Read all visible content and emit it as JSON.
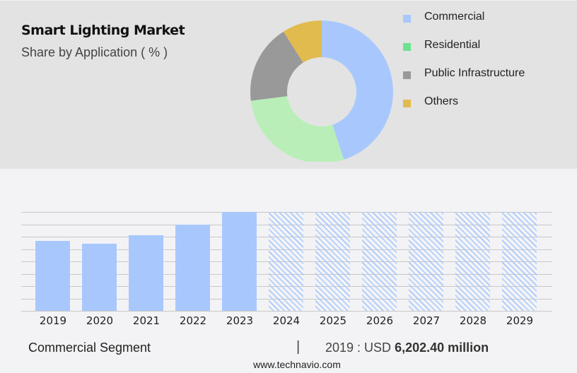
{
  "header": {
    "title": "Smart Lighting Market",
    "subtitle": "Share by Application ( % )"
  },
  "legend": {
    "items": [
      {
        "label": "Commercial",
        "color": "#a8c8fd"
      },
      {
        "label": "Residential",
        "color": "#6de28e"
      },
      {
        "label": "Public Infrastructure",
        "color": "#999999"
      },
      {
        "label": "Others",
        "color": "#e2bb4e"
      }
    ]
  },
  "footer": {
    "segment": "Commercial Segment",
    "separator": "|",
    "year_prefix": "2019 : USD ",
    "value": "6,202.40 million",
    "url": "www.technavio.com"
  },
  "chart_data": [
    {
      "type": "pie",
      "title": "Smart Lighting Market",
      "subtitle": "Share by Application ( % )",
      "donut": true,
      "categories": [
        "Commercial",
        "Residential",
        "Public Infrastructure",
        "Others"
      ],
      "values": [
        45,
        28,
        18,
        9
      ],
      "colors": [
        "#a8c8fd",
        "#b9eeb9",
        "#999999",
        "#e2bb4e"
      ],
      "legend_position": "right"
    },
    {
      "type": "bar",
      "title": "Commercial Segment",
      "categories": [
        "2019",
        "2020",
        "2021",
        "2022",
        "2023",
        "2024",
        "2025",
        "2026",
        "2027",
        "2028",
        "2029"
      ],
      "values": [
        6202.4,
        5950,
        6750,
        7700,
        8800,
        null,
        null,
        null,
        null,
        null,
        null
      ],
      "forecast": [
        false,
        false,
        false,
        false,
        false,
        true,
        true,
        true,
        true,
        true,
        true
      ],
      "forecast_display_height": 8800,
      "ylabel": "",
      "xlabel": "",
      "ylim": [
        0,
        8800
      ],
      "grid": true,
      "gridlines": 9,
      "annotation": "2019 : USD 6,202.40 million"
    }
  ]
}
